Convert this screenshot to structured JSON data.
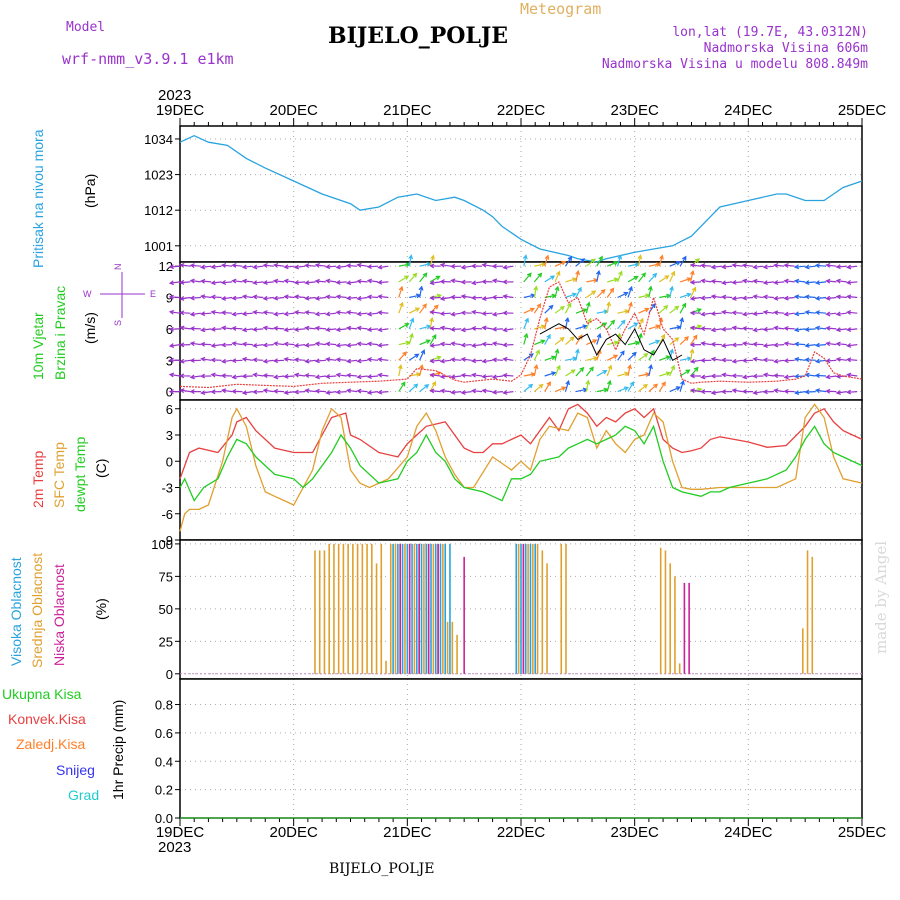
{
  "header": {
    "model_label": "Model",
    "model_name": "wrf-nmm_v3.9.1 e1km",
    "product": "Meteogram",
    "station": "BIJELO_POLJE",
    "lonlat": "lon,lat (19.7E, 43.0312N)",
    "altitude": "Nadmorska Visina 606m",
    "model_altitude": "Nadmorska Visina u modelu 808.849m",
    "credit": "made by Angel",
    "footer_station": "BIJELO_POLJE"
  },
  "time_axis": {
    "year": "2023",
    "ticks": [
      "19DEC",
      "20DEC",
      "21DEC",
      "22DEC",
      "23DEC",
      "24DEC",
      "25DEC"
    ]
  },
  "panel_labels": {
    "pressure": [
      "Pritisak na nivou mora",
      "(hPa)"
    ],
    "wind": [
      "10m Vjetar",
      "Brzina i Pravac",
      "(m/s)"
    ],
    "wind_rose": "N\n^\n|\nW <--|--> E\n|\nv\nS",
    "temp": [
      "2m Temp",
      "SFC Temp",
      "dewpt Temp",
      "(C)"
    ],
    "cloud": [
      "Visoka Oblacnost",
      "Srednja Oblacnost",
      "Niska Oblacnost",
      "(%)"
    ],
    "precip": [
      "Ukupna Kisa",
      "Konvek.Kisa",
      "Zaledj.Kisa",
      "Snijeg",
      "Grad"
    ],
    "precip_unit": "1hr Precip (mm)"
  },
  "colors": {
    "pressure": "#29a3e0",
    "wind_green": "#22cc22",
    "wind_purple": "#9933cc",
    "temp_2m": "#e84040",
    "temp_sfc": "#e0a030",
    "temp_dew": "#22cc22",
    "cloud_high": "#29a3e0",
    "cloud_mid": "#e0a030",
    "cloud_low": "#cc2299",
    "precip_total": "#22cc22",
    "precip_conv": "#e84040",
    "precip_frz": "#ff7f27",
    "precip_snow": "#3333ee",
    "precip_hail": "#22cccc"
  },
  "chart_data": [
    {
      "type": "line",
      "panel": "pressure",
      "ylabel": "(hPa)",
      "yticks": [
        1001,
        1012,
        1023,
        1034
      ],
      "ylim": [
        996,
        1038
      ],
      "x_hours": [
        0,
        3,
        6,
        10,
        14,
        18,
        24,
        30,
        36,
        38,
        42,
        46,
        50,
        54,
        58,
        60,
        64,
        66,
        68,
        72,
        76,
        82,
        84,
        88,
        90,
        96,
        100,
        104,
        108,
        112,
        114,
        120,
        126,
        128,
        130,
        132,
        136,
        138,
        140,
        144
      ],
      "values": [
        1033,
        1035,
        1033,
        1032,
        1028,
        1025,
        1021,
        1017,
        1014,
        1012,
        1013,
        1016,
        1017,
        1015,
        1016,
        1015,
        1012,
        1010,
        1007,
        1003,
        1000,
        998,
        997,
        996,
        997,
        999,
        1000,
        1001,
        1004,
        1010,
        1013,
        1015,
        1017,
        1017,
        1016,
        1015,
        1015,
        1017,
        1019,
        1021
      ]
    },
    {
      "type": "line",
      "panel": "wind",
      "ylabel": "(m/s)",
      "yticks": [
        0,
        3,
        6,
        9,
        12
      ],
      "ylim": [
        -0.8,
        12.4
      ],
      "series": [
        {
          "x_hours": [
            0,
            6,
            12,
            18,
            24,
            30,
            36,
            42,
            48,
            50,
            54,
            58,
            60,
            66,
            70,
            72,
            74,
            76,
            78,
            80,
            82,
            84,
            86,
            88,
            90,
            92,
            94,
            96,
            98,
            100,
            102,
            104,
            106,
            108,
            110,
            114,
            120,
            126,
            130,
            132,
            134,
            136,
            138,
            140,
            144
          ],
          "values": [
            0.5,
            0.4,
            0.7,
            0.6,
            0.5,
            0.8,
            0.9,
            1.0,
            1.2,
            2.2,
            2.0,
            1.1,
            0.9,
            1.2,
            1.0,
            1.6,
            3.5,
            7.0,
            10.0,
            10.5,
            8.5,
            9.0,
            6.5,
            7.0,
            6.0,
            4.0,
            6.0,
            7.5,
            5.5,
            9.0,
            6.0,
            5.0,
            1.2,
            0.8,
            0.9,
            1.0,
            0.9,
            1.0,
            1.2,
            1.5,
            3.8,
            3.2,
            1.8,
            1.5,
            1.2
          ]
        },
        {
          "x_hours": [
            76,
            80,
            82,
            84,
            86,
            88,
            90,
            92,
            94,
            96,
            98,
            100,
            102,
            104,
            106
          ],
          "values": [
            5.5,
            6.5,
            6.0,
            5.0,
            5.5,
            3.5,
            5.0,
            5.5,
            4.5,
            6.0,
            4.0,
            3.5,
            5.0,
            3.0,
            3.5
          ]
        }
      ]
    },
    {
      "type": "line",
      "panel": "temp",
      "ylabel": "(C)",
      "yticks": [
        -9,
        -6,
        -3,
        0,
        3,
        6
      ],
      "ylim": [
        -9,
        7
      ],
      "series": [
        {
          "name": "2m Temp",
          "x_hours": [
            0,
            2,
            4,
            8,
            11,
            12,
            14,
            16,
            20,
            24,
            28,
            30,
            32,
            35,
            36,
            38,
            42,
            46,
            48,
            50,
            52,
            56,
            60,
            62,
            64,
            66,
            68,
            70,
            72,
            74,
            78,
            80,
            82,
            84,
            86,
            88,
            90,
            92,
            94,
            96,
            98,
            100,
            102,
            104,
            106,
            108,
            110,
            112,
            114,
            116,
            120,
            124,
            128,
            132,
            134,
            136,
            138,
            140,
            142,
            144
          ],
          "values": [
            -2,
            1,
            1.5,
            1.0,
            3.0,
            4.5,
            5.0,
            3.5,
            1.5,
            1.0,
            1.0,
            3.0,
            5.0,
            5.5,
            3.0,
            2.5,
            1.0,
            0.5,
            2.0,
            3.0,
            4.0,
            4.5,
            1.5,
            1.0,
            1.0,
            2.0,
            2.0,
            2.5,
            3.0,
            2.0,
            5.0,
            3.5,
            6.0,
            6.5,
            5.5,
            4.0,
            5.0,
            4.5,
            5.5,
            6.0,
            5.0,
            6.0,
            2.5,
            1.5,
            1.0,
            1.2,
            1.5,
            2.5,
            2.8,
            2.6,
            2.2,
            1.6,
            1.8,
            4.0,
            5.5,
            6.0,
            4.5,
            3.5,
            3.0,
            2.5
          ]
        },
        {
          "name": "SFC Temp",
          "x_hours": [
            0,
            1,
            2,
            4,
            6,
            9,
            11,
            12,
            14,
            16,
            18,
            20,
            22,
            24,
            28,
            30,
            32,
            34,
            36,
            38,
            40,
            44,
            48,
            50,
            52,
            54,
            56,
            58,
            60,
            62,
            66,
            70,
            72,
            74,
            76,
            78,
            82,
            84,
            86,
            88,
            90,
            92,
            94,
            96,
            98,
            100,
            102,
            104,
            106,
            108,
            110,
            114,
            120,
            126,
            130,
            132,
            134,
            136,
            138,
            140,
            144
          ],
          "values": [
            -8,
            -6,
            -5.5,
            -5.5,
            -5.0,
            0.0,
            5.0,
            6.0,
            4.0,
            -0.5,
            -3.5,
            -4.0,
            -4.5,
            -5.0,
            -1.0,
            3.5,
            6.0,
            5.0,
            -1.0,
            -2.5,
            -3.0,
            -2.0,
            0.5,
            4.0,
            5.5,
            3.5,
            0.5,
            -1.5,
            -3.0,
            -3.0,
            0.5,
            -1.0,
            0.0,
            -1.0,
            2.5,
            4.0,
            3.5,
            5.5,
            5.0,
            1.5,
            3.5,
            2.0,
            1.0,
            2.5,
            3.0,
            5.5,
            4.5,
            0.0,
            -3.0,
            -3.2,
            -3.2,
            -3.0,
            -3.0,
            -3.0,
            -2.0,
            5.0,
            6.5,
            5.0,
            0.5,
            -2.0,
            -2.5
          ]
        },
        {
          "name": "dewpt Temp",
          "x_hours": [
            0,
            1,
            3,
            5,
            8,
            10,
            12,
            14,
            16,
            20,
            24,
            26,
            28,
            32,
            34,
            36,
            38,
            42,
            46,
            48,
            50,
            52,
            54,
            56,
            58,
            60,
            64,
            66,
            68,
            70,
            72,
            74,
            76,
            80,
            82,
            84,
            86,
            88,
            90,
            92,
            94,
            96,
            98,
            100,
            102,
            104,
            106,
            110,
            112,
            114,
            116,
            120,
            124,
            128,
            130,
            132,
            134,
            136,
            138,
            140,
            144
          ],
          "values": [
            -3,
            -2,
            -4.5,
            -3.0,
            -2.0,
            0.5,
            2.5,
            2.0,
            0.5,
            -1.5,
            -2.0,
            -3.0,
            -2.0,
            1.0,
            3.0,
            1.5,
            -0.5,
            -2.5,
            -2.0,
            0.0,
            1.0,
            3.0,
            1.0,
            0.0,
            -2.0,
            -3.0,
            -3.5,
            -4.0,
            -4.5,
            -2.0,
            -2.0,
            -1.5,
            0.0,
            0.5,
            1.5,
            2.0,
            2.5,
            2.0,
            2.5,
            3.0,
            4.0,
            3.5,
            2.0,
            4.0,
            0.0,
            -3.0,
            -3.5,
            -4.0,
            -3.5,
            -3.5,
            -3.0,
            -2.5,
            -2.0,
            -1.0,
            0.5,
            2.5,
            4.0,
            2.0,
            1.0,
            0.5,
            -0.5
          ]
        }
      ]
    },
    {
      "type": "bar",
      "panel": "cloud",
      "ylabel": "(%)",
      "yticks": [
        0,
        25,
        50,
        75,
        100
      ],
      "ylim": [
        -4,
        103
      ],
      "series": [
        {
          "name": "Srednja Oblacnost",
          "x_hours": [
            28.5,
            29.5,
            30.5,
            31.5,
            32.5,
            33.5,
            34.5,
            35.5,
            36.5,
            37.5,
            38.5,
            39.5,
            40.5,
            41.5,
            42.5,
            43.5,
            44.5,
            45.5,
            46.5,
            47.5,
            48.5,
            49.5,
            50.5,
            51.5,
            52.5,
            53.5,
            54.5,
            55.5,
            56.5,
            57.5,
            58.5,
            71.5,
            72.5,
            73.5,
            74.5,
            75.5,
            76.5,
            77.5,
            80.5,
            81.5,
            101.5,
            102.5,
            103.5,
            104.5,
            105.5,
            131.5,
            132.5,
            133.5
          ],
          "values": [
            95,
            95,
            95,
            100,
            100,
            100,
            100,
            100,
            100,
            100,
            100,
            100,
            100,
            85,
            100,
            10,
            100,
            100,
            100,
            100,
            100,
            100,
            100,
            100,
            100,
            100,
            100,
            100,
            40,
            40,
            30,
            100,
            100,
            100,
            100,
            100,
            95,
            85,
            100,
            100,
            97,
            95,
            85,
            75,
            8,
            35,
            95,
            90
          ]
        },
        {
          "name": "Visoka Oblacnost",
          "x_hours": [
            45,
            46,
            47,
            48,
            49,
            50,
            51,
            52,
            53,
            54,
            55,
            56,
            57,
            71,
            72,
            73,
            74,
            75
          ],
          "values": [
            100,
            100,
            100,
            100,
            100,
            100,
            100,
            100,
            100,
            100,
            100,
            100,
            100,
            100,
            100,
            100,
            100,
            100
          ]
        },
        {
          "name": "Niska Oblacnost",
          "x_hours": [
            46.5,
            48.5,
            50.5,
            52.5,
            54.5,
            60,
            72.5,
            106.5,
            107.5
          ],
          "values": [
            100,
            100,
            100,
            100,
            100,
            90,
            100,
            70,
            70
          ]
        }
      ]
    },
    {
      "type": "line",
      "panel": "precip",
      "ylabel": "1hr Precip (mm)",
      "yticks": [
        0.0,
        0.2,
        0.4,
        0.6,
        0.8
      ],
      "ylim": [
        0,
        0.98
      ],
      "x_hours": [
        0,
        144
      ],
      "values": [
        0,
        0
      ]
    }
  ]
}
